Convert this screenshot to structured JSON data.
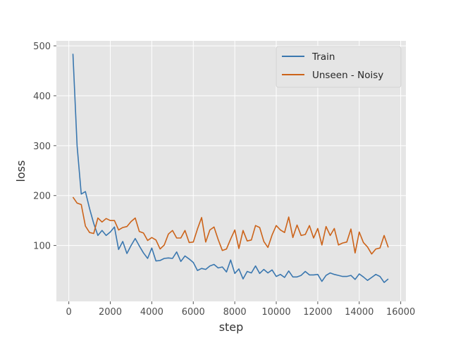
{
  "chart_data": {
    "type": "line",
    "title": "",
    "xlabel": "step",
    "ylabel": "loss",
    "xlim": [
      -600,
      16250
    ],
    "ylim": [
      -12,
      510
    ],
    "xticks": [
      0,
      2000,
      4000,
      6000,
      8000,
      10000,
      12000,
      14000,
      16000
    ],
    "yticks": [
      100,
      200,
      300,
      400,
      500
    ],
    "grid": true,
    "legend_position": "top-right",
    "series": [
      {
        "name": "Train",
        "color": "#3a77af",
        "x": [
          200,
          400,
          600,
          800,
          1000,
          1200,
          1400,
          1600,
          1800,
          2000,
          2200,
          2400,
          2600,
          2800,
          3000,
          3200,
          3400,
          3600,
          3800,
          4000,
          4200,
          4400,
          4600,
          4800,
          5000,
          5200,
          5400,
          5600,
          5800,
          6000,
          6200,
          6400,
          6600,
          6800,
          7000,
          7200,
          7400,
          7600,
          7800,
          8000,
          8200,
          8400,
          8600,
          8800,
          9000,
          9200,
          9400,
          9600,
          9800,
          10000,
          10200,
          10400,
          10600,
          10800,
          11000,
          11200,
          11400,
          11600,
          11800,
          12000,
          12200,
          12400,
          12600,
          12800,
          13000,
          13200,
          13400,
          13600,
          13800,
          14000,
          14200,
          14400,
          14600,
          14800,
          15000,
          15200,
          15400
        ],
        "y": [
          484,
          300,
          203,
          208,
          174,
          144,
          120,
          130,
          120,
          127,
          137,
          92,
          108,
          84,
          100,
          114,
          99,
          85,
          74,
          95,
          69,
          70,
          74,
          75,
          74,
          87,
          68,
          79,
          73,
          66,
          50,
          54,
          52,
          59,
          62,
          55,
          57,
          47,
          71,
          44,
          53,
          33,
          48,
          45,
          59,
          44,
          52,
          45,
          51,
          38,
          42,
          36,
          49,
          37,
          37,
          40,
          48,
          41,
          41,
          42,
          28,
          40,
          45,
          42,
          40,
          38,
          38,
          40,
          32,
          43,
          37,
          30,
          36,
          42,
          38,
          26,
          33
        ]
      },
      {
        "name": "Unseen - Noisy",
        "color": "#cc6319",
        "x": [
          200,
          400,
          600,
          800,
          1000,
          1200,
          1400,
          1600,
          1800,
          2000,
          2200,
          2400,
          2600,
          2800,
          3000,
          3200,
          3400,
          3600,
          3800,
          4000,
          4200,
          4400,
          4600,
          4800,
          5000,
          5200,
          5400,
          5600,
          5800,
          6000,
          6200,
          6400,
          6600,
          6800,
          7000,
          7200,
          7400,
          7600,
          7800,
          8000,
          8200,
          8400,
          8600,
          8800,
          9000,
          9200,
          9400,
          9600,
          9800,
          10000,
          10200,
          10400,
          10600,
          10800,
          11000,
          11200,
          11400,
          11600,
          11800,
          12000,
          12200,
          12400,
          12600,
          12800,
          13000,
          13200,
          13400,
          13600,
          13800,
          14000,
          14200,
          14400,
          14600,
          14800,
          15000,
          15200,
          15400
        ],
        "y": [
          197,
          185,
          182,
          139,
          126,
          124,
          155,
          147,
          154,
          150,
          150,
          131,
          136,
          138,
          148,
          155,
          128,
          125,
          110,
          116,
          111,
          93,
          101,
          123,
          130,
          115,
          115,
          130,
          106,
          107,
          133,
          156,
          107,
          131,
          137,
          112,
          90,
          93,
          113,
          131,
          94,
          130,
          109,
          111,
          140,
          136,
          108,
          96,
          121,
          140,
          131,
          126,
          157,
          116,
          141,
          120,
          122,
          140,
          115,
          134,
          101,
          138,
          120,
          134,
          101,
          105,
          107,
          133,
          85,
          127,
          106,
          97,
          83,
          93,
          95,
          120,
          96
        ]
      }
    ]
  }
}
